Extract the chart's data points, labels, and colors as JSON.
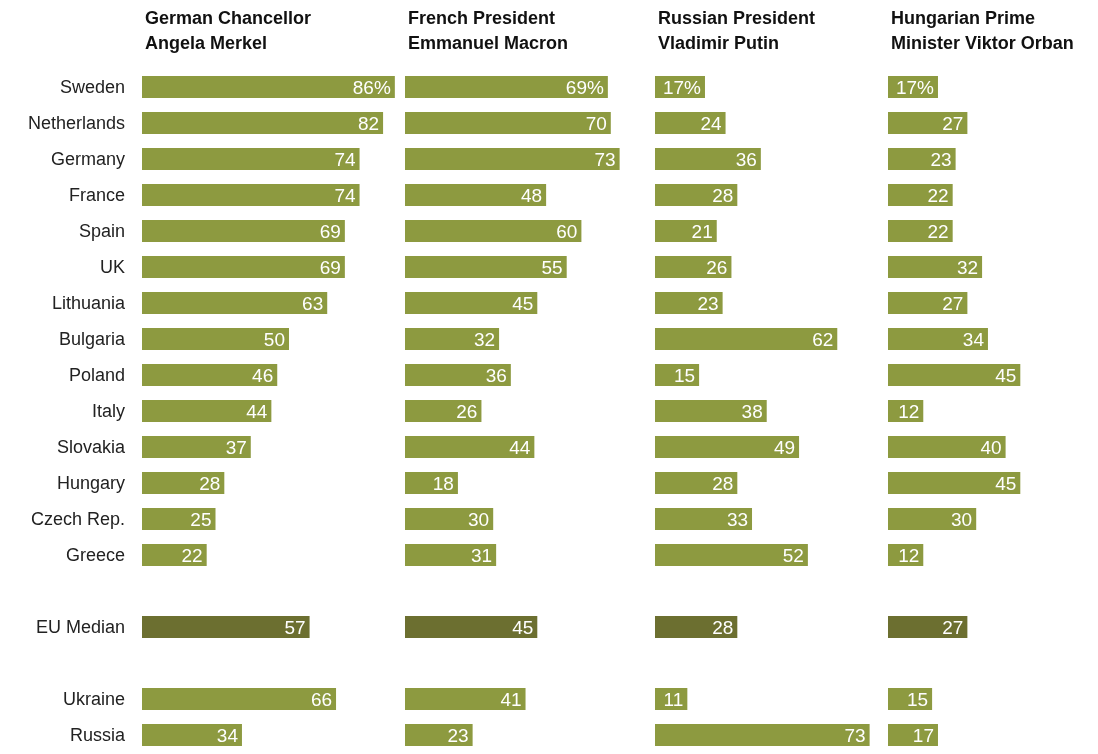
{
  "chart_data": [
    {
      "type": "bar",
      "orientation": "horizontal",
      "title": "German Chancellor\nAngela Merkel",
      "tick_labels": "y",
      "categories": [
        "Sweden",
        "Netherlands",
        "Germany",
        "France",
        "Spain",
        "UK",
        "Lithuania",
        "Bulgaria",
        "Poland",
        "Italy",
        "Slovakia",
        "Hungary",
        "Czech Rep.",
        "Greece",
        null,
        "EU Median",
        null,
        "Ukraine",
        "Russia"
      ],
      "values": [
        86,
        82,
        74,
        74,
        69,
        69,
        63,
        50,
        46,
        44,
        37,
        28,
        25,
        22,
        null,
        57,
        null,
        66,
        34
      ],
      "value_labels": [
        "86%",
        "82",
        "74",
        "74",
        "69",
        "69",
        "63",
        "50",
        "46",
        "44",
        "37",
        "28",
        "25",
        "22",
        null,
        "57",
        null,
        "66",
        "34"
      ],
      "colors": [
        "#8d9a40",
        "#8d9a40",
        "#8d9a40",
        "#8d9a40",
        "#8d9a40",
        "#8d9a40",
        "#8d9a40",
        "#8d9a40",
        "#8d9a40",
        "#8d9a40",
        "#8d9a40",
        "#8d9a40",
        "#8d9a40",
        "#8d9a40",
        null,
        "#6c6f30",
        null,
        "#8d9a40",
        "#8d9a40"
      ]
    },
    {
      "type": "bar",
      "orientation": "horizontal",
      "title": "French President\nEmmanuel Macron",
      "tick_labels": false,
      "categories": [
        null,
        null,
        null,
        null,
        null,
        null,
        null,
        null,
        null,
        null,
        null,
        null,
        null,
        null,
        null,
        null,
        null,
        null,
        null
      ],
      "values": [
        69,
        70,
        73,
        48,
        60,
        55,
        45,
        32,
        36,
        26,
        44,
        18,
        30,
        31,
        null,
        45,
        null,
        41,
        23
      ],
      "value_labels": [
        "69%",
        "70",
        "73",
        "48",
        "60",
        "55",
        "45",
        "32",
        "36",
        "26",
        "44",
        "18",
        "30",
        "31",
        null,
        "45",
        null,
        "41",
        "23"
      ],
      "colors": [
        "#8d9a40",
        "#8d9a40",
        "#8d9a40",
        "#8d9a40",
        "#8d9a40",
        "#8d9a40",
        "#8d9a40",
        "#8d9a40",
        "#8d9a40",
        "#8d9a40",
        "#8d9a40",
        "#8d9a40",
        "#8d9a40",
        "#8d9a40",
        null,
        "#6c6f30",
        null,
        "#8d9a40",
        "#8d9a40"
      ]
    },
    {
      "type": "bar",
      "orientation": "horizontal",
      "title": "Russian President\nVladimir Putin",
      "tick_labels": false,
      "categories": [
        null,
        null,
        null,
        null,
        null,
        null,
        null,
        null,
        null,
        null,
        null,
        null,
        null,
        null,
        null,
        null,
        null,
        null,
        null
      ],
      "values": [
        17,
        24,
        36,
        28,
        21,
        26,
        23,
        62,
        15,
        38,
        49,
        28,
        33,
        52,
        null,
        28,
        null,
        11,
        73
      ],
      "value_labels": [
        "17%",
        "24",
        "36",
        "28",
        "21",
        "26",
        "23",
        "62",
        "15",
        "38",
        "49",
        "28",
        "33",
        "52",
        null,
        "28",
        null,
        "11",
        "73"
      ],
      "colors": [
        "#8d9a40",
        "#8d9a40",
        "#8d9a40",
        "#8d9a40",
        "#8d9a40",
        "#8d9a40",
        "#8d9a40",
        "#8d9a40",
        "#8d9a40",
        "#8d9a40",
        "#8d9a40",
        "#8d9a40",
        "#8d9a40",
        "#8d9a40",
        null,
        "#6c6f30",
        null,
        "#8d9a40",
        "#8d9a40"
      ]
    },
    {
      "type": "bar",
      "orientation": "horizontal",
      "title": "Hungarian Prime\nMinister Viktor Orban",
      "tick_labels": false,
      "categories": [
        null,
        null,
        null,
        null,
        null,
        null,
        null,
        null,
        null,
        null,
        null,
        null,
        null,
        null,
        null,
        null,
        null,
        null,
        null
      ],
      "values": [
        17,
        27,
        23,
        22,
        22,
        32,
        27,
        34,
        45,
        12,
        40,
        45,
        30,
        12,
        null,
        27,
        null,
        15,
        17
      ],
      "value_labels": [
        "17%",
        "27",
        "23",
        "22",
        "22",
        "32",
        "27",
        "34",
        "45",
        "12",
        "40",
        "45",
        "30",
        "12",
        null,
        "27",
        null,
        "15",
        "17"
      ],
      "colors": [
        "#8d9a40",
        "#8d9a40",
        "#8d9a40",
        "#8d9a40",
        "#8d9a40",
        "#8d9a40",
        "#8d9a40",
        "#8d9a40",
        "#8d9a40",
        "#8d9a40",
        "#8d9a40",
        "#8d9a40",
        "#8d9a40",
        "#8d9a40",
        null,
        "#6c6f30",
        null,
        "#8d9a40",
        "#8d9a40"
      ]
    }
  ]
}
